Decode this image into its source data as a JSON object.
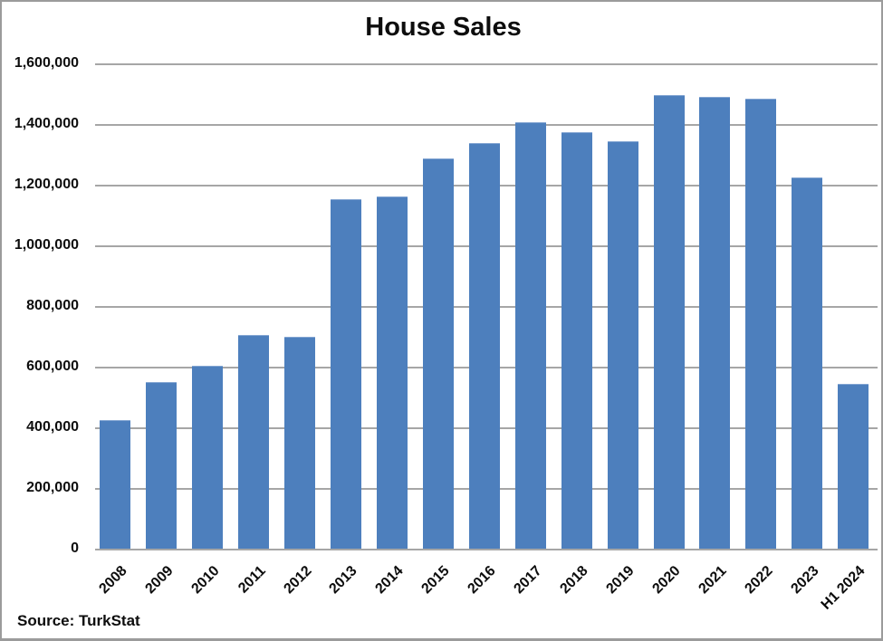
{
  "title": "House Sales",
  "source_note": "Source: TurkStat",
  "colors": {
    "bar": "#4d7fbd",
    "gridline": "#a6a6a6",
    "frame_border": "#9b9b9b",
    "text": "#0d0d0d",
    "background": "#ffffff"
  },
  "chart_data": {
    "type": "bar",
    "title": "House Sales",
    "xlabel": "",
    "ylabel": "",
    "grid": true,
    "legend": false,
    "ylim": [
      0,
      1600000
    ],
    "ytick_interval": 200000,
    "ytick_labels": [
      "0",
      "200,000",
      "400,000",
      "600,000",
      "800,000",
      "1,000,000",
      "1,200,000",
      "1,400,000",
      "1,600,000"
    ],
    "categories": [
      "2008",
      "2009",
      "2010",
      "2011",
      "2012",
      "2013",
      "2014",
      "2015",
      "2016",
      "2017",
      "2018",
      "2019",
      "2020",
      "2021",
      "2022",
      "2023",
      "H1 2024"
    ],
    "values": [
      425000,
      553000,
      605000,
      707000,
      702000,
      1155000,
      1162000,
      1289000,
      1340000,
      1408000,
      1375000,
      1346000,
      1497000,
      1491000,
      1485000,
      1226000,
      546000
    ],
    "source": "Source: TurkStat"
  }
}
